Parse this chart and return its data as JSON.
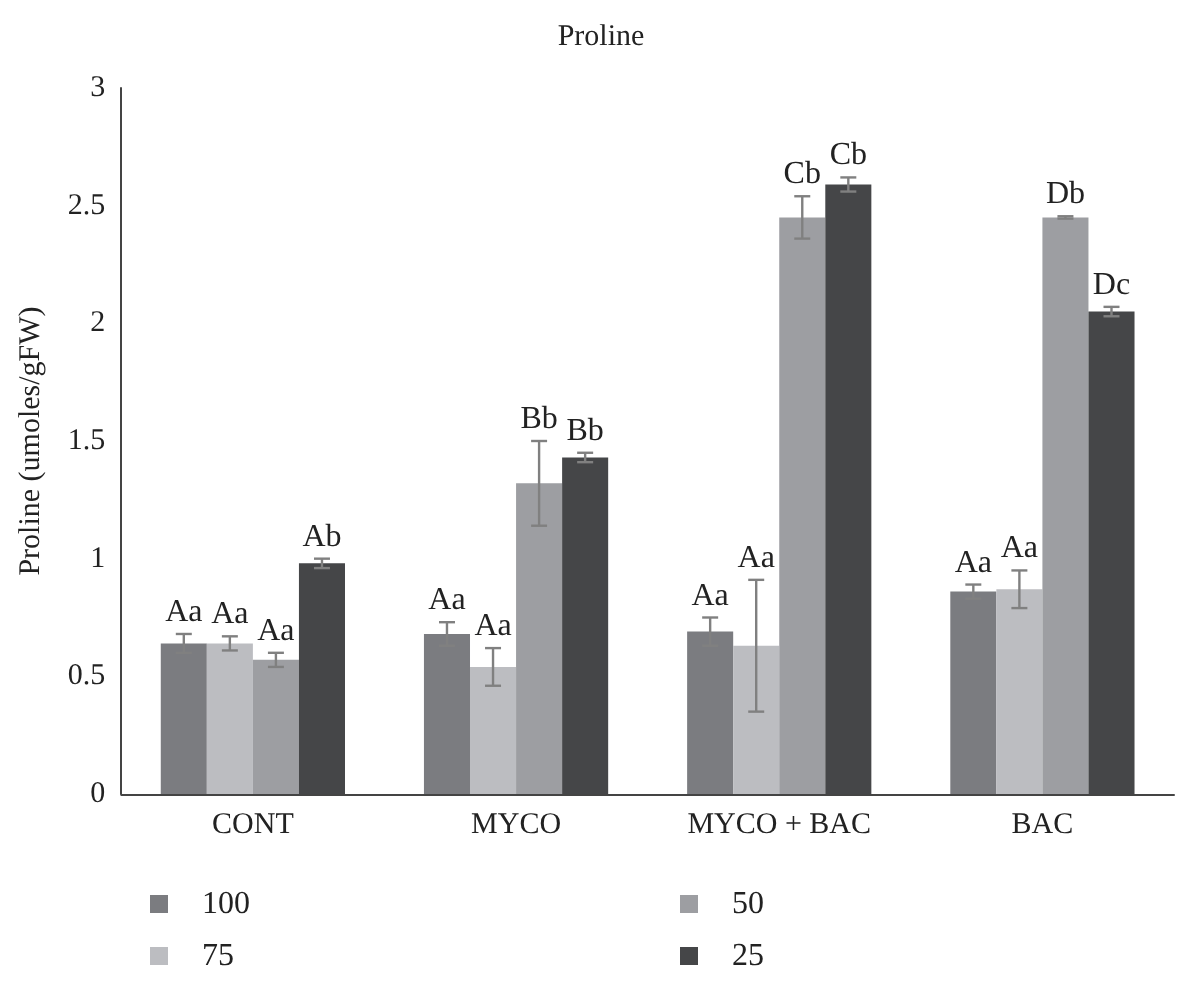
{
  "chart_data": {
    "type": "bar",
    "title": "Proline",
    "ylabel": "Proline (umoles/gFW)",
    "categories": [
      "CONT",
      "MYCO",
      "MYCO + BAC",
      "BAC"
    ],
    "series": [
      {
        "name": "100",
        "color": "#7b7c80",
        "values": [
          0.64,
          0.68,
          0.69,
          0.86
        ],
        "errors": [
          0.04,
          0.05,
          0.06,
          0.03
        ],
        "value_labels": [
          "Aa",
          "Aa",
          "Aa",
          "Aa"
        ]
      },
      {
        "name": "75",
        "color": "#bcbdc1",
        "values": [
          0.64,
          0.54,
          0.63,
          0.87
        ],
        "errors": [
          0.03,
          0.08,
          0.28,
          0.08
        ],
        "value_labels": [
          "Aa",
          "Aa",
          "Aa",
          "Aa"
        ]
      },
      {
        "name": "50",
        "color": "#9d9ea2",
        "values": [
          0.57,
          1.32,
          2.45,
          2.45
        ],
        "errors": [
          0.03,
          0.18,
          0.09,
          0.005
        ],
        "value_labels": [
          "Aa",
          "Bb",
          "Cb",
          "Db"
        ]
      },
      {
        "name": "25",
        "color": "#454648",
        "values": [
          0.98,
          1.43,
          2.59,
          2.05
        ],
        "errors": [
          0.02,
          0.02,
          0.03,
          0.02
        ],
        "value_labels": [
          "Ab",
          "Bb",
          "Cb",
          "Dc"
        ]
      }
    ],
    "ylim": [
      0,
      3
    ],
    "yticks": [
      0,
      0.5,
      1,
      1.5,
      2,
      2.5,
      3
    ],
    "grid": false,
    "legend": "bottom"
  }
}
